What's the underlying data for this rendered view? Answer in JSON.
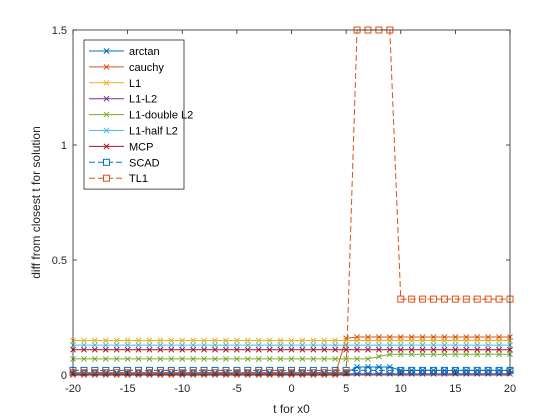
{
  "chart_data": {
    "type": "line",
    "xlabel": "t for x0",
    "ylabel": "diff from closest t for solution",
    "xlim": [
      -20,
      20
    ],
    "ylim": [
      0,
      1.5
    ],
    "x_ticks": [
      -20,
      -15,
      -10,
      -5,
      0,
      5,
      10,
      15,
      20
    ],
    "y_ticks": [
      0,
      0.5,
      1,
      1.5
    ],
    "y_tick_labels": [
      "0",
      "0.5",
      "1",
      "1.5"
    ],
    "grid": false,
    "legend_position": "top-left",
    "x": [
      -20,
      -19,
      -18,
      -17,
      -16,
      -15,
      -14,
      -13,
      -12,
      -11,
      -10,
      -9,
      -8,
      -7,
      -6,
      -5,
      -4,
      -3,
      -2,
      -1,
      0,
      1,
      2,
      3,
      4,
      5,
      6,
      7,
      8,
      9,
      10,
      11,
      12,
      13,
      14,
      15,
      16,
      17,
      18,
      19,
      20
    ],
    "series": [
      {
        "name": "arctan",
        "color": "#0072BD",
        "marker": "x",
        "dash": "solid",
        "values": [
          0.01,
          0.01,
          0.01,
          0.01,
          0.01,
          0.01,
          0.01,
          0.01,
          0.01,
          0.01,
          0.01,
          0.01,
          0.01,
          0.01,
          0.01,
          0.01,
          0.01,
          0.01,
          0.01,
          0.01,
          0.01,
          0.01,
          0.01,
          0.01,
          0.01,
          0.01,
          0.035,
          0.035,
          0.035,
          0.035,
          0.02,
          0.02,
          0.02,
          0.02,
          0.02,
          0.02,
          0.02,
          0.02,
          0.02,
          0.02,
          0.02
        ]
      },
      {
        "name": "cauchy",
        "color": "#D95319",
        "marker": "x",
        "dash": "solid",
        "values": [
          0.0,
          0.0,
          0.0,
          0.0,
          0.0,
          0.0,
          0.0,
          0.0,
          0.0,
          0.0,
          0.0,
          0.0,
          0.0,
          0.0,
          0.0,
          0.0,
          0.0,
          0.0,
          0.0,
          0.0,
          0.0,
          0.0,
          0.0,
          0.0,
          0.0,
          0.16,
          0.165,
          0.165,
          0.165,
          0.165,
          0.165,
          0.165,
          0.165,
          0.165,
          0.165,
          0.165,
          0.165,
          0.165,
          0.165,
          0.165,
          0.165
        ]
      },
      {
        "name": "L1",
        "color": "#EDB120",
        "marker": "x",
        "dash": "solid",
        "values": [
          0.15,
          0.15,
          0.15,
          0.15,
          0.15,
          0.15,
          0.15,
          0.15,
          0.15,
          0.15,
          0.15,
          0.15,
          0.15,
          0.15,
          0.15,
          0.15,
          0.15,
          0.15,
          0.15,
          0.15,
          0.15,
          0.15,
          0.15,
          0.15,
          0.15,
          0.15,
          0.15,
          0.15,
          0.15,
          0.15,
          0.15,
          0.15,
          0.15,
          0.15,
          0.15,
          0.15,
          0.15,
          0.15,
          0.15,
          0.15,
          0.15
        ]
      },
      {
        "name": "L1-L2",
        "color": "#7E2F8E",
        "marker": "x",
        "dash": "solid",
        "values": [
          0.005,
          0.005,
          0.005,
          0.005,
          0.005,
          0.005,
          0.005,
          0.005,
          0.005,
          0.005,
          0.005,
          0.005,
          0.005,
          0.005,
          0.005,
          0.005,
          0.005,
          0.005,
          0.005,
          0.005,
          0.005,
          0.005,
          0.005,
          0.005,
          0.005,
          0.005,
          0.005,
          0.005,
          0.005,
          0.005,
          0.005,
          0.005,
          0.005,
          0.005,
          0.005,
          0.005,
          0.005,
          0.005,
          0.005,
          0.005,
          0.005
        ]
      },
      {
        "name": "L1-double L2",
        "color": "#77AC30",
        "marker": "x",
        "dash": "solid",
        "values": [
          0.07,
          0.07,
          0.07,
          0.07,
          0.07,
          0.07,
          0.07,
          0.07,
          0.07,
          0.07,
          0.07,
          0.07,
          0.07,
          0.07,
          0.07,
          0.07,
          0.07,
          0.07,
          0.07,
          0.07,
          0.07,
          0.07,
          0.07,
          0.07,
          0.07,
          0.07,
          0.07,
          0.07,
          0.08,
          0.09,
          0.09,
          0.09,
          0.09,
          0.09,
          0.09,
          0.09,
          0.09,
          0.09,
          0.09,
          0.09,
          0.09
        ]
      },
      {
        "name": "L1-half L2",
        "color": "#4DBEEE",
        "marker": "x",
        "dash": "solid",
        "values": [
          0.13,
          0.13,
          0.13,
          0.13,
          0.13,
          0.13,
          0.13,
          0.13,
          0.13,
          0.13,
          0.13,
          0.13,
          0.13,
          0.13,
          0.13,
          0.13,
          0.13,
          0.13,
          0.13,
          0.13,
          0.13,
          0.13,
          0.13,
          0.13,
          0.13,
          0.13,
          0.13,
          0.13,
          0.13,
          0.13,
          0.13,
          0.13,
          0.13,
          0.13,
          0.13,
          0.13,
          0.13,
          0.13,
          0.13,
          0.13,
          0.13
        ]
      },
      {
        "name": "MCP",
        "color": "#A2142F",
        "marker": "x",
        "dash": "solid",
        "values": [
          0.11,
          0.11,
          0.11,
          0.11,
          0.11,
          0.11,
          0.11,
          0.11,
          0.11,
          0.11,
          0.11,
          0.11,
          0.11,
          0.11,
          0.11,
          0.11,
          0.11,
          0.11,
          0.11,
          0.11,
          0.11,
          0.11,
          0.11,
          0.11,
          0.11,
          0.11,
          0.11,
          0.11,
          0.11,
          0.11,
          0.11,
          0.11,
          0.11,
          0.11,
          0.11,
          0.11,
          0.11,
          0.11,
          0.11,
          0.11,
          0.11
        ]
      },
      {
        "name": "SCAD",
        "color": "#0072BD",
        "marker": "square",
        "dash": "dashed",
        "values": [
          0.02,
          0.02,
          0.02,
          0.02,
          0.02,
          0.02,
          0.02,
          0.02,
          0.02,
          0.02,
          0.02,
          0.02,
          0.02,
          0.02,
          0.02,
          0.02,
          0.02,
          0.02,
          0.02,
          0.02,
          0.02,
          0.02,
          0.02,
          0.02,
          0.02,
          0.02,
          0.02,
          0.02,
          0.02,
          0.02,
          0.02,
          0.02,
          0.02,
          0.02,
          0.02,
          0.02,
          0.02,
          0.02,
          0.02,
          0.02,
          0.02
        ]
      },
      {
        "name": "TL1",
        "color": "#D95319",
        "marker": "square",
        "dash": "dashed",
        "values": [
          0.01,
          0.01,
          0.01,
          0.01,
          0.01,
          0.01,
          0.01,
          0.01,
          0.01,
          0.01,
          0.01,
          0.01,
          0.01,
          0.01,
          0.01,
          0.01,
          0.01,
          0.01,
          0.01,
          0.01,
          0.01,
          0.01,
          0.01,
          0.01,
          0.01,
          0.01,
          1.5,
          1.5,
          1.5,
          1.5,
          0.33,
          0.33,
          0.33,
          0.33,
          0.33,
          0.33,
          0.33,
          0.33,
          0.33,
          0.33,
          0.33
        ]
      }
    ]
  }
}
